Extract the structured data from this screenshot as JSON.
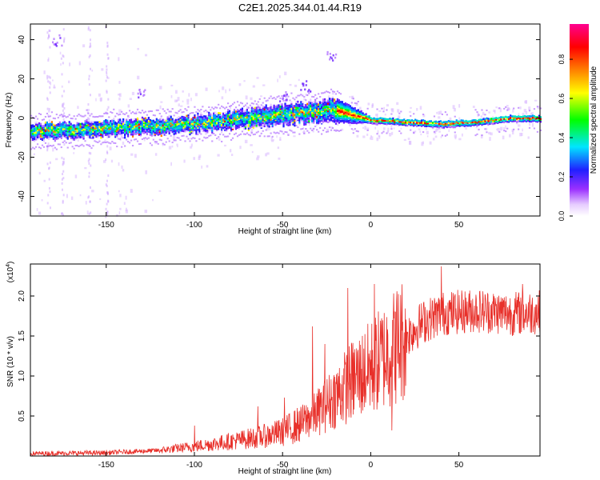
{
  "title": "C2E1.2025.344.01.44.R19",
  "chart_data": [
    {
      "type": "heatmap",
      "xlabel": "Height of straight line (km)",
      "ylabel": "Frequency (Hz)",
      "xlim": [
        -193,
        96
      ],
      "ylim": [
        -50,
        48
      ],
      "xticks": [
        -150,
        -100,
        -50,
        0,
        50
      ],
      "xtick_labels": [
        "-150",
        "-100",
        "-50",
        "0",
        "50"
      ],
      "yticks": [
        -40,
        -20,
        0,
        20,
        40
      ],
      "ytick_labels": [
        "-40",
        "-20",
        "0",
        "20",
        "40"
      ],
      "ridge": {
        "x": [
          -193,
          -150,
          -100,
          -60,
          -40,
          -20,
          0,
          20,
          40,
          60,
          80,
          96
        ],
        "freq": [
          -7,
          -5,
          -3,
          1,
          3,
          4,
          -1,
          -2,
          -3,
          -2,
          0,
          0
        ],
        "band_halfwidth": [
          4,
          4,
          4,
          5,
          5,
          6,
          1.5,
          1.5,
          1.5,
          1.5,
          1.5,
          1.5
        ]
      },
      "colorbar": {
        "label": "Normalized spectral amplitude",
        "range": [
          0,
          0.98
        ],
        "ticks": [
          0.0,
          0.2,
          0.4,
          0.6,
          0.8
        ],
        "tick_labels": [
          "0.0",
          "0.2",
          "0.4",
          "0.6",
          "0.8"
        ],
        "colors": [
          "#ffffff",
          "#9b30ff",
          "#2020ff",
          "#00e5ff",
          "#00ff00",
          "#ffff00",
          "#ff8000",
          "#ff0000",
          "#ff0090"
        ]
      }
    },
    {
      "type": "line",
      "xlabel": "Height of straight line (km)",
      "ylabel": "SNR (10 * v/v)",
      "scale_label": "(x10",
      "scale_exp": "4",
      "scale_close": ")",
      "xlim": [
        -193,
        96
      ],
      "ylim": [
        0,
        2.4
      ],
      "xticks": [
        -150,
        -100,
        -50,
        0,
        50
      ],
      "xtick_labels": [
        "-150",
        "-100",
        "-50",
        "0",
        "50"
      ],
      "yticks": [
        0.5,
        1.0,
        1.5,
        2.0
      ],
      "ytick_labels": [
        "0.5",
        "1.0",
        "1.5",
        "2.0"
      ],
      "color": "#e8302a",
      "trend": {
        "x": [
          -193,
          -150,
          -120,
          -100,
          -80,
          -60,
          -50,
          -40,
          -30,
          -20,
          -10,
          0,
          10,
          20,
          30,
          40,
          60,
          80,
          96
        ],
        "y": [
          0.03,
          0.04,
          0.07,
          0.12,
          0.18,
          0.25,
          0.3,
          0.4,
          0.55,
          0.75,
          0.95,
          1.1,
          1.3,
          1.5,
          1.68,
          1.78,
          1.82,
          1.78,
          1.8
        ]
      },
      "spikes": [
        {
          "x": -100,
          "y": 0.38
        },
        {
          "x": -64,
          "y": 0.62
        },
        {
          "x": -49,
          "y": 0.73
        },
        {
          "x": -33,
          "y": 1.62
        },
        {
          "x": -26,
          "y": 1.4
        },
        {
          "x": -13,
          "y": 2.1
        },
        {
          "x": 2,
          "y": 2.15
        },
        {
          "x": 12,
          "y": 0.32
        },
        {
          "x": 40,
          "y": 2.37
        },
        {
          "x": 86,
          "y": 2.15
        }
      ]
    }
  ]
}
